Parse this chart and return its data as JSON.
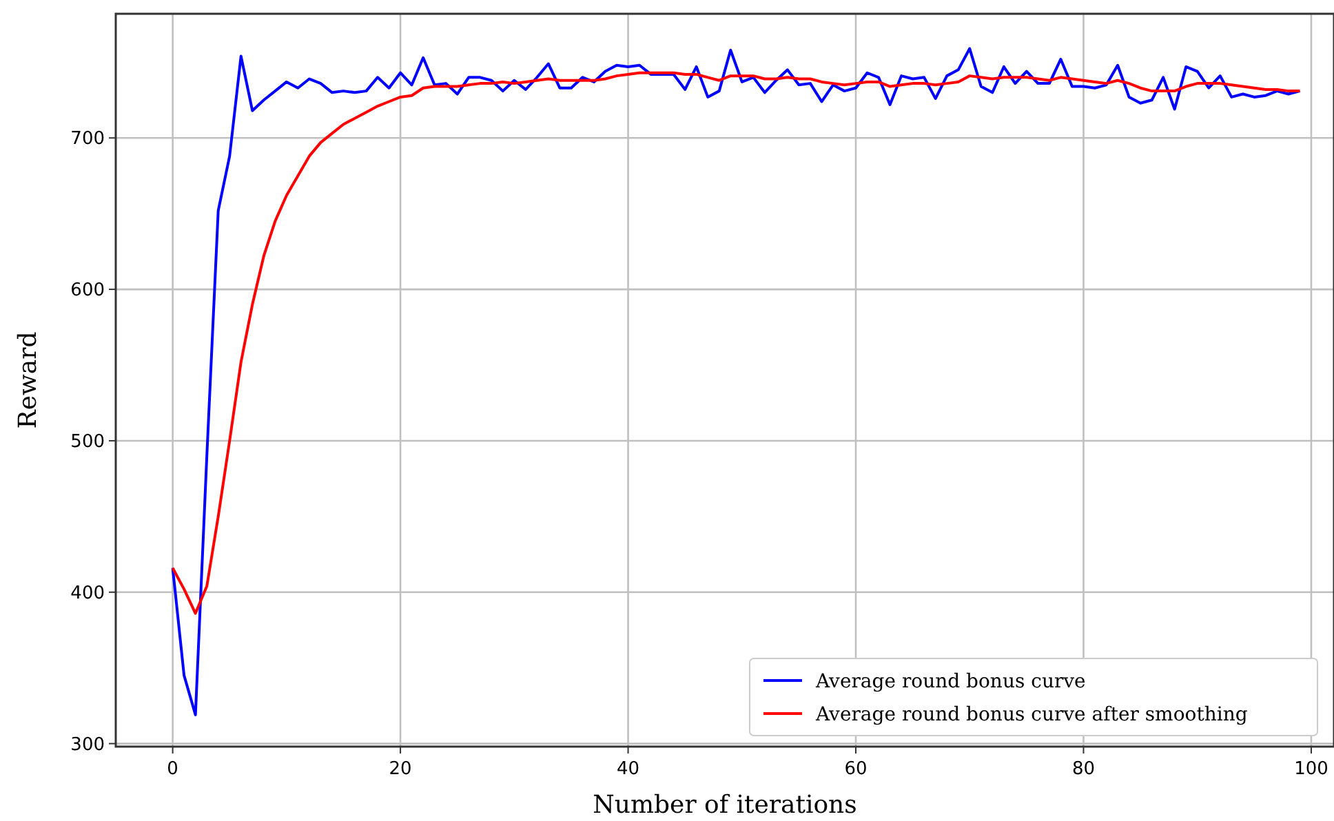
{
  "chart_data": {
    "type": "line",
    "xlabel": "Number of iterations",
    "ylabel": "Reward",
    "xlim": [
      -5,
      102
    ],
    "ylim": [
      298,
      782
    ],
    "xticks": [
      0,
      20,
      40,
      60,
      80,
      100
    ],
    "yticks": [
      300,
      400,
      500,
      600,
      700
    ],
    "grid": true,
    "legend": "bottom right",
    "series": [
      {
        "name": "Average round bonus curve",
        "color": "#0000ff",
        "x": [
          0,
          1,
          2,
          3,
          4,
          5,
          6,
          7,
          8,
          9,
          10,
          11,
          12,
          13,
          14,
          15,
          16,
          17,
          18,
          19,
          20,
          21,
          22,
          23,
          24,
          25,
          26,
          27,
          28,
          29,
          30,
          31,
          32,
          33,
          34,
          35,
          36,
          37,
          38,
          39,
          40,
          41,
          42,
          43,
          44,
          45,
          46,
          47,
          48,
          49,
          50,
          51,
          52,
          53,
          54,
          55,
          56,
          57,
          58,
          59,
          60,
          61,
          62,
          63,
          64,
          65,
          66,
          67,
          68,
          69,
          70,
          71,
          72,
          73,
          74,
          75,
          76,
          77,
          78,
          79,
          80,
          81,
          82,
          83,
          84,
          85,
          86,
          87,
          88,
          89,
          90,
          91,
          92,
          93,
          94,
          95,
          96,
          97,
          98,
          99
        ],
        "values": [
          416,
          345,
          319,
          490,
          652,
          688,
          754,
          718,
          725,
          731,
          737,
          733,
          739,
          736,
          730,
          731,
          730,
          731,
          740,
          733,
          743,
          735,
          753,
          735,
          736,
          729,
          740,
          740,
          738,
          731,
          738,
          732,
          740,
          749,
          733,
          733,
          740,
          737,
          744,
          748,
          747,
          748,
          742,
          742,
          742,
          732,
          747,
          727,
          731,
          758,
          737,
          740,
          730,
          738,
          745,
          735,
          736,
          724,
          735,
          731,
          733,
          743,
          740,
          722,
          741,
          739,
          740,
          726,
          741,
          745,
          759,
          734,
          730,
          747,
          736,
          744,
          736,
          736,
          752,
          734,
          734,
          733,
          735,
          748,
          727,
          723,
          725,
          740,
          719,
          747,
          744,
          733,
          741,
          727,
          729,
          727,
          728,
          731,
          729,
          731
        ]
      },
      {
        "name": "Average round bonus curve after smoothing",
        "color": "#ff0000",
        "x": [
          0,
          1,
          2,
          3,
          4,
          5,
          6,
          7,
          8,
          9,
          10,
          11,
          12,
          13,
          14,
          15,
          16,
          17,
          18,
          19,
          20,
          21,
          22,
          23,
          24,
          25,
          26,
          27,
          28,
          29,
          30,
          31,
          32,
          33,
          34,
          35,
          36,
          37,
          38,
          39,
          40,
          41,
          42,
          43,
          44,
          45,
          46,
          47,
          48,
          49,
          50,
          51,
          52,
          53,
          54,
          55,
          56,
          57,
          58,
          59,
          60,
          61,
          62,
          63,
          64,
          65,
          66,
          67,
          68,
          69,
          70,
          71,
          72,
          73,
          74,
          75,
          76,
          77,
          78,
          79,
          80,
          81,
          82,
          83,
          84,
          85,
          86,
          87,
          88,
          89,
          90,
          91,
          92,
          93,
          94,
          95,
          96,
          97,
          98,
          99
        ],
        "values": [
          416,
          402,
          386,
          404,
          450,
          500,
          552,
          590,
          622,
          645,
          662,
          675,
          688,
          697,
          703,
          709,
          713,
          717,
          721,
          724,
          727,
          728,
          733,
          734,
          734,
          734,
          735,
          736,
          736,
          737,
          736,
          737,
          738,
          739,
          738,
          738,
          738,
          738,
          739,
          741,
          742,
          743,
          743,
          743,
          743,
          742,
          742,
          740,
          738,
          741,
          741,
          741,
          739,
          739,
          740,
          739,
          739,
          737,
          736,
          735,
          736,
          737,
          737,
          734,
          735,
          736,
          736,
          735,
          736,
          737,
          741,
          740,
          739,
          740,
          740,
          740,
          739,
          738,
          740,
          739,
          738,
          737,
          736,
          738,
          736,
          733,
          731,
          731,
          731,
          734,
          736,
          736,
          736,
          735,
          734,
          733,
          732,
          732,
          731,
          731
        ]
      }
    ]
  }
}
